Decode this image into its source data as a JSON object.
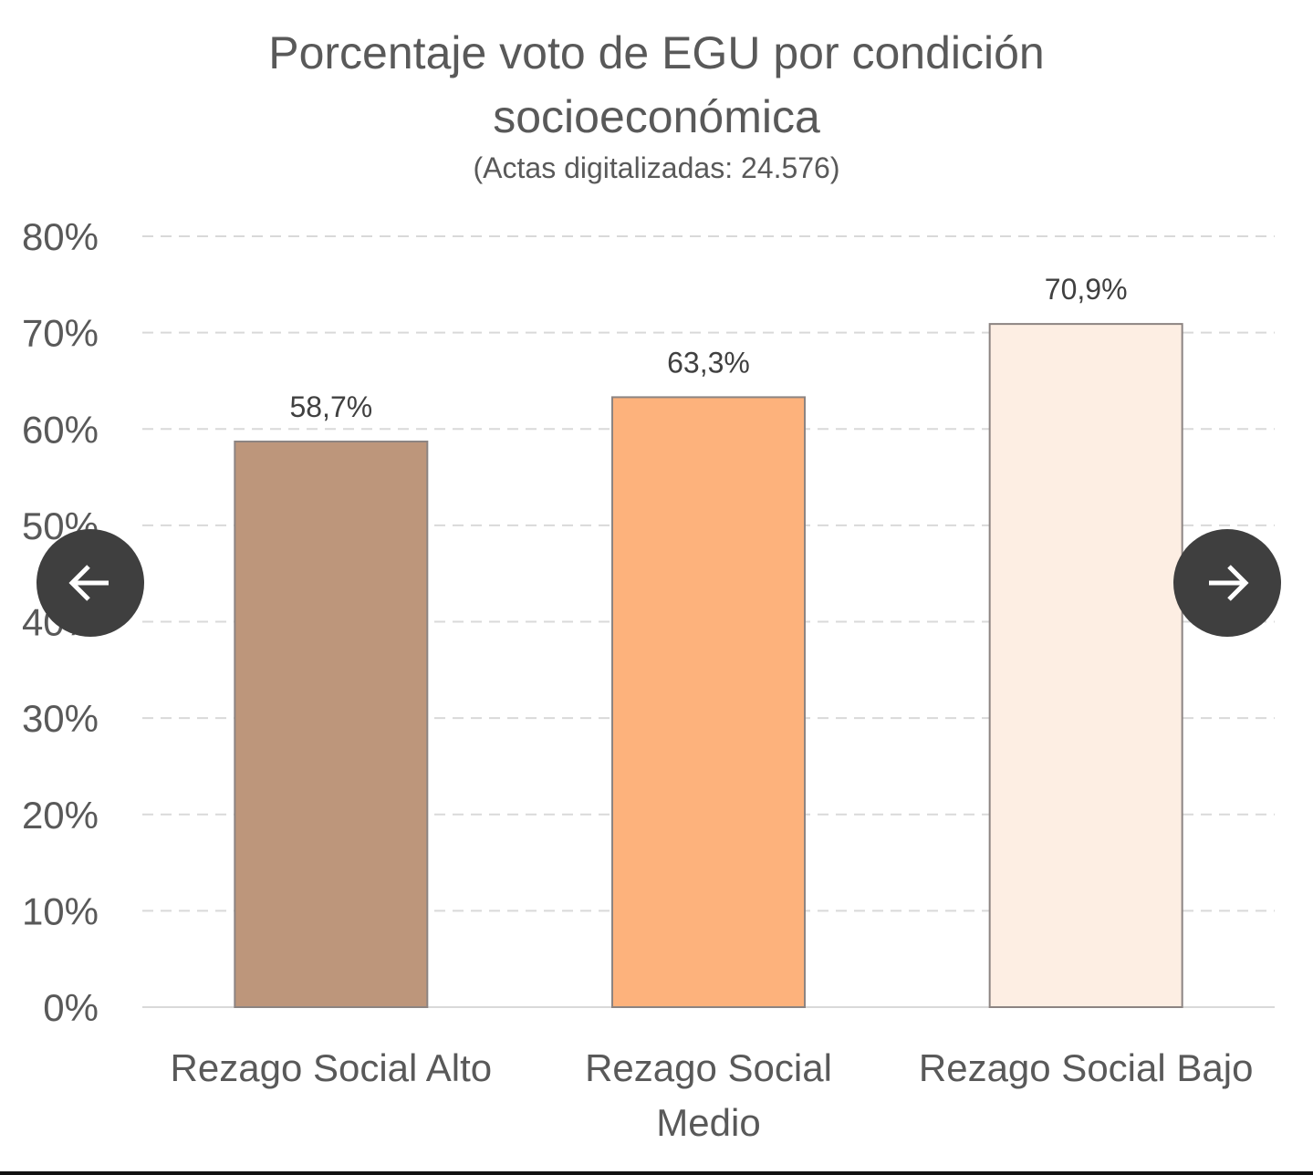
{
  "chart_data": {
    "type": "bar",
    "title_line1": "Porcentaje voto de EGU por condición",
    "title_line2": "socioeconómica",
    "subtitle": "(Actas digitalizadas: 24.576)",
    "categories": [
      "Rezago Social Alto",
      "Rezago Social Medio",
      "Rezago Social Bajo"
    ],
    "category_lines": [
      [
        "Rezago Social Alto"
      ],
      [
        "Rezago Social",
        "Medio"
      ],
      [
        "Rezago Social Bajo"
      ]
    ],
    "values": [
      58.7,
      63.3,
      70.9
    ],
    "data_labels": [
      "58,7%",
      "63,3%",
      "70,9%"
    ],
    "colors": [
      "#bd967b",
      "#fdb27c",
      "#fdeee3"
    ],
    "ylim": [
      0,
      80
    ],
    "yticks": [
      0,
      10,
      20,
      30,
      40,
      50,
      60,
      70,
      80
    ],
    "ytick_labels": [
      "0%",
      "10%",
      "20%",
      "30%",
      "40%",
      "50%",
      "60%",
      "70%",
      "80%"
    ],
    "grid": true,
    "xlabel": "",
    "ylabel": ""
  },
  "nav": {
    "prev_icon": "arrow-left-icon",
    "next_icon": "arrow-right-icon"
  }
}
